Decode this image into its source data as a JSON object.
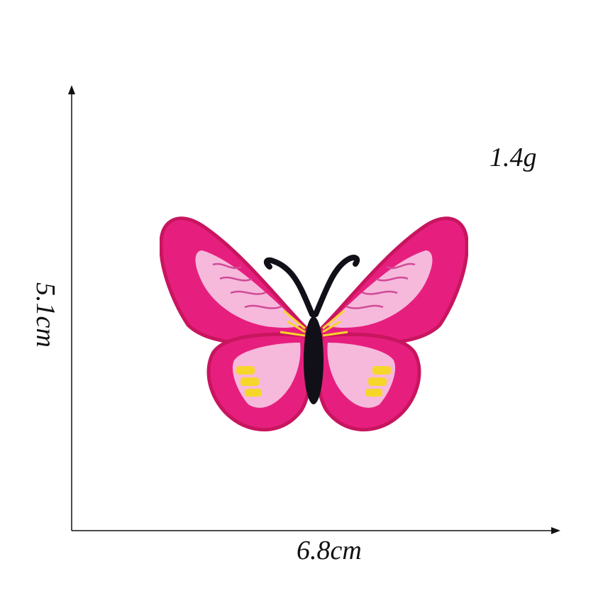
{
  "labels": {
    "weight": "1.4g",
    "width": "6.8cm",
    "height": "5.1cm"
  },
  "product": {
    "icon": "butterfly-patch-icon",
    "colors": {
      "wing_outer": "#e61f7e",
      "wing_border": "#c8155f",
      "wing_inner": "#f6b9dc",
      "wing_stripes": "#d24a96",
      "body": "#111018",
      "accent": "#f7d62a"
    }
  }
}
